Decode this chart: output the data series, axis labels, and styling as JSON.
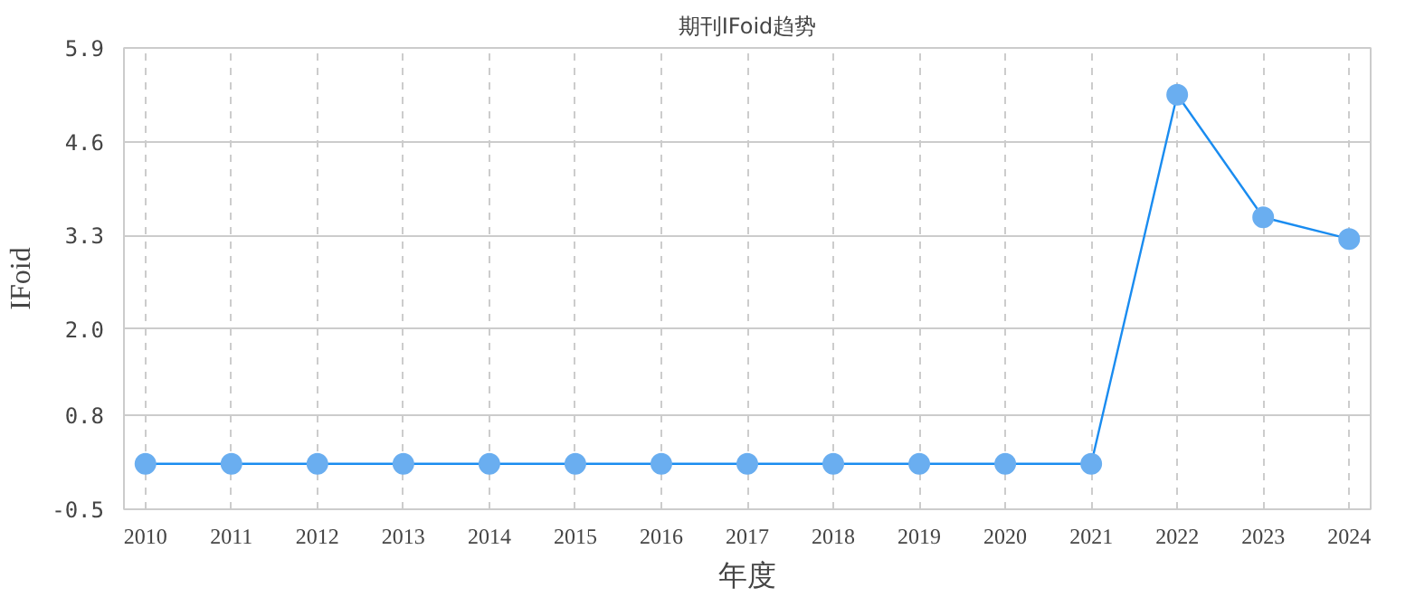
{
  "chart_data": {
    "type": "line",
    "title": "期刊IFoid趋势",
    "xlabel": "年度",
    "ylabel": "IFoid",
    "categories": [
      "2010",
      "2011",
      "2012",
      "2013",
      "2014",
      "2015",
      "2016",
      "2017",
      "2018",
      "2019",
      "2020",
      "2021",
      "2022",
      "2023",
      "2024"
    ],
    "series": [
      {
        "color": "#1a8cf0",
        "values": [
          0.13,
          0.13,
          0.13,
          0.13,
          0.13,
          0.13,
          0.13,
          0.13,
          0.13,
          0.13,
          0.13,
          0.13,
          5.25,
          3.55,
          3.25
        ]
      }
    ],
    "ylim": [
      -0.5,
      5.9
    ],
    "yticks": [
      -0.5,
      0.8,
      {
        "value": 2,
        "label": "2.0"
      },
      3.3,
      4.6,
      5.9
    ],
    "grid": true,
    "marker": "circle",
    "line_style": "solid"
  }
}
